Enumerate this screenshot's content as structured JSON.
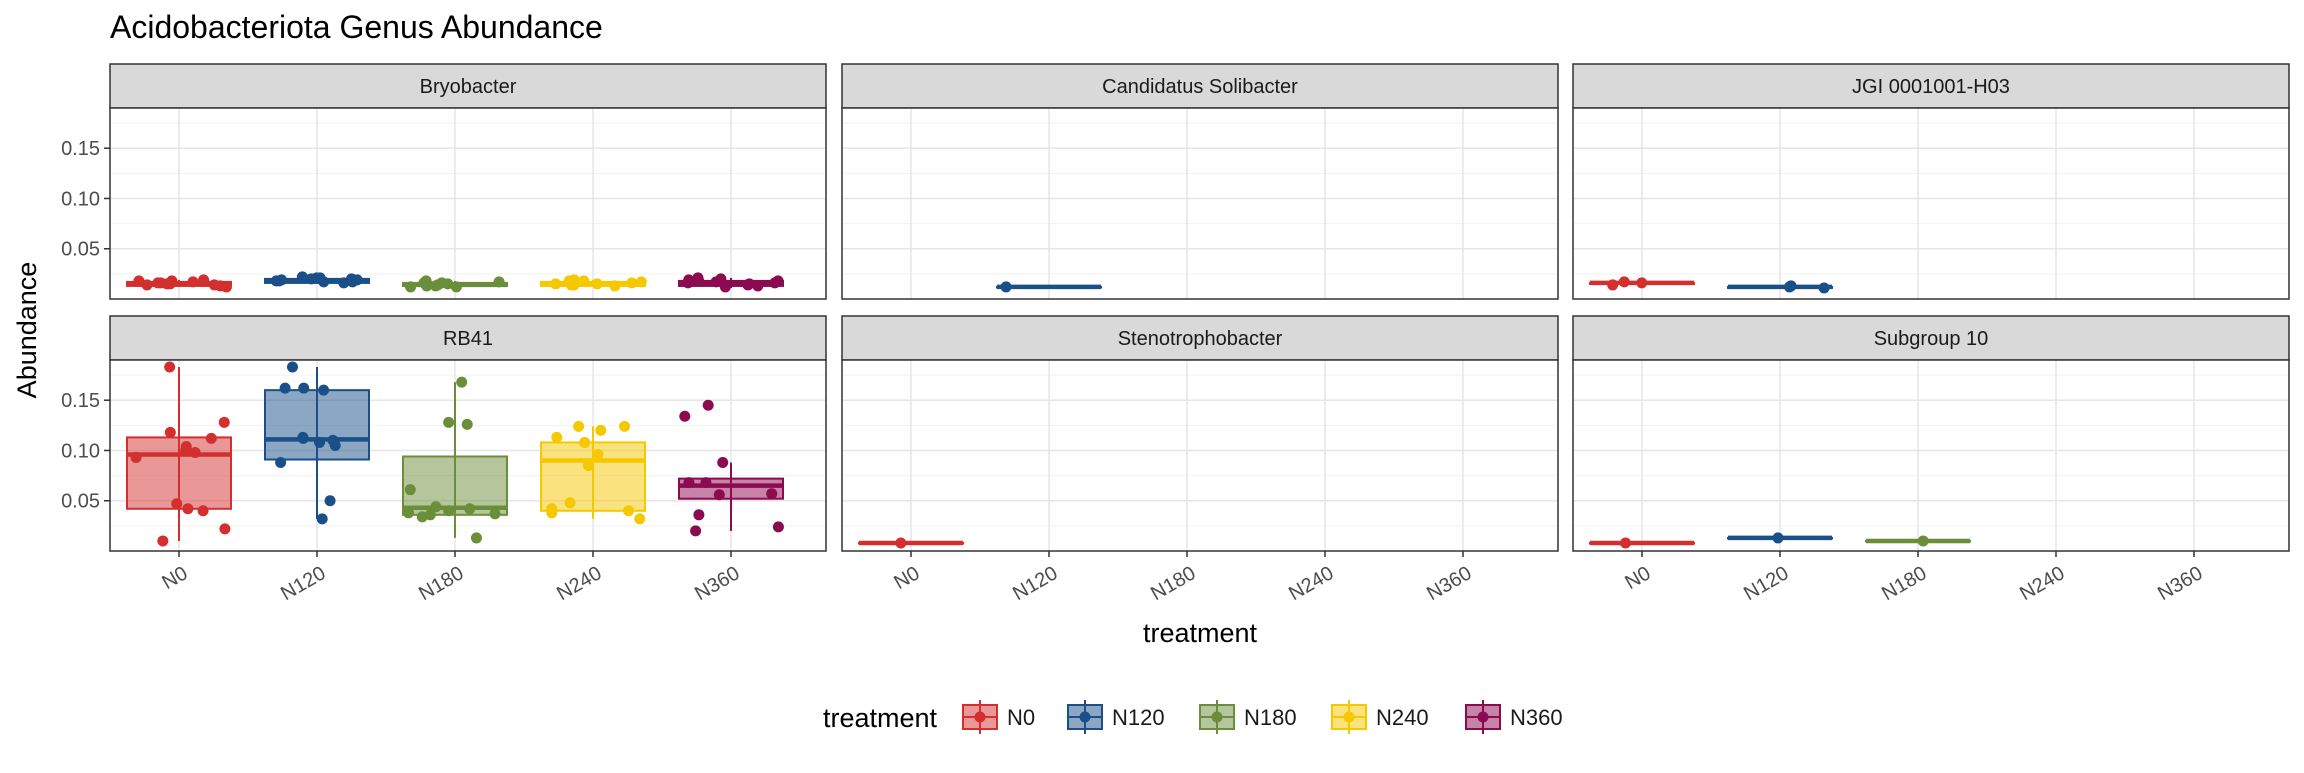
{
  "chart_data": {
    "type": "box",
    "title": "Acidobacteriota Genus Abundance",
    "xlabel": "treatment",
    "ylabel": "Abundance",
    "categories": [
      "N0",
      "N120",
      "N180",
      "N240",
      "N360"
    ],
    "yticks": [
      0.05,
      0.1,
      0.15
    ],
    "ytick_labels": [
      "0.05",
      "0.10",
      "0.15"
    ],
    "ylim": [
      0.0,
      0.19
    ],
    "grid": true,
    "legend": {
      "title": "treatment",
      "position": "bottom",
      "items": [
        "N0",
        "N120",
        "N180",
        "N240",
        "N360"
      ]
    },
    "colors": {
      "N0": "#d32f2f",
      "N120": "#1a4f8a",
      "N180": "#6b8e3a",
      "N240": "#f5c800",
      "N360": "#8b0a50"
    },
    "facets": [
      {
        "name": "Bryobacter",
        "groups": [
          {
            "category": "N0",
            "q1": 0.013,
            "median": 0.015,
            "q3": 0.017,
            "whisker_low": 0.012,
            "whisker_high": 0.019,
            "points": [
              0.014,
              0.016,
              0.018,
              0.015,
              0.013,
              0.017,
              0.019,
              0.014,
              0.016,
              0.015,
              0.018,
              0.012
            ]
          },
          {
            "category": "N120",
            "q1": 0.016,
            "median": 0.018,
            "q3": 0.02,
            "whisker_low": 0.015,
            "whisker_high": 0.022,
            "points": [
              0.019,
              0.021,
              0.017,
              0.02,
              0.018,
              0.022,
              0.016,
              0.019,
              0.017,
              0.021,
              0.018,
              0.02
            ]
          },
          {
            "category": "N180",
            "q1": 0.013,
            "median": 0.014,
            "q3": 0.016,
            "whisker_low": 0.011,
            "whisker_high": 0.018,
            "points": [
              0.013,
              0.016,
              0.018,
              0.014,
              0.012,
              0.015,
              0.017,
              0.013,
              0.016,
              0.014,
              0.012,
              0.015
            ]
          },
          {
            "category": "N240",
            "q1": 0.013,
            "median": 0.015,
            "q3": 0.017,
            "whisker_low": 0.012,
            "whisker_high": 0.019,
            "points": [
              0.015,
              0.017,
              0.019,
              0.014,
              0.016,
              0.018,
              0.013,
              0.015,
              0.017,
              0.016,
              0.014,
              0.018
            ]
          },
          {
            "category": "N360",
            "q1": 0.013,
            "median": 0.016,
            "q3": 0.018,
            "whisker_low": 0.011,
            "whisker_high": 0.021,
            "points": [
              0.016,
              0.019,
              0.013,
              0.018,
              0.015,
              0.021,
              0.014,
              0.017,
              0.02,
              0.016,
              0.012,
              0.018
            ]
          }
        ]
      },
      {
        "name": "Candidatus Solibacter",
        "groups": [
          {
            "category": "N120",
            "q1": 0.012,
            "median": 0.012,
            "q3": 0.012,
            "whisker_low": 0.012,
            "whisker_high": 0.012,
            "points": [
              0.012
            ]
          }
        ]
      },
      {
        "name": "JGI 0001001-H03",
        "groups": [
          {
            "category": "N0",
            "q1": 0.015,
            "median": 0.016,
            "q3": 0.016,
            "whisker_low": 0.014,
            "whisker_high": 0.017,
            "points": [
              0.014,
              0.017,
              0.016
            ]
          },
          {
            "category": "N120",
            "q1": 0.011,
            "median": 0.012,
            "q3": 0.012,
            "whisker_low": 0.011,
            "whisker_high": 0.013,
            "points": [
              0.011,
              0.013,
              0.012
            ]
          }
        ]
      },
      {
        "name": "RB41",
        "groups": [
          {
            "category": "N0",
            "q1": 0.042,
            "median": 0.096,
            "q3": 0.113,
            "whisker_low": 0.01,
            "whisker_high": 0.183,
            "points": [
              0.183,
              0.112,
              0.1,
              0.098,
              0.042,
              0.04,
              0.047,
              0.022,
              0.01,
              0.118,
              0.093,
              0.128,
              0.104
            ]
          },
          {
            "category": "N120",
            "q1": 0.091,
            "median": 0.111,
            "q3": 0.16,
            "whisker_low": 0.032,
            "whisker_high": 0.183,
            "points": [
              0.162,
              0.16,
              0.113,
              0.105,
              0.11,
              0.112,
              0.088,
              0.05,
              0.032,
              0.162,
              0.183,
              0.108
            ]
          },
          {
            "category": "N180",
            "q1": 0.036,
            "median": 0.043,
            "q3": 0.094,
            "whisker_low": 0.013,
            "whisker_high": 0.168,
            "points": [
              0.036,
              0.04,
              0.013,
              0.168,
              0.126,
              0.128,
              0.044,
              0.038,
              0.034,
              0.061,
              0.042,
              0.037
            ]
          },
          {
            "category": "N240",
            "q1": 0.04,
            "median": 0.09,
            "q3": 0.108,
            "whisker_low": 0.032,
            "whisker_high": 0.124,
            "points": [
              0.12,
              0.124,
              0.124,
              0.096,
              0.085,
              0.048,
              0.042,
              0.04,
              0.032,
              0.113,
              0.108,
              0.038
            ]
          },
          {
            "category": "N360",
            "q1": 0.052,
            "median": 0.065,
            "q3": 0.072,
            "whisker_low": 0.02,
            "whisker_high": 0.088,
            "points": [
              0.024,
              0.02,
              0.145,
              0.088,
              0.068,
              0.036,
              0.134,
              0.068,
              0.056,
              0.057
            ]
          }
        ]
      },
      {
        "name": "Stenotrophobacter",
        "groups": [
          {
            "category": "N0",
            "q1": 0.008,
            "median": 0.008,
            "q3": 0.008,
            "whisker_low": 0.008,
            "whisker_high": 0.008,
            "points": [
              0.008
            ]
          }
        ]
      },
      {
        "name": "Subgroup 10",
        "groups": [
          {
            "category": "N0",
            "q1": 0.008,
            "median": 0.008,
            "q3": 0.008,
            "whisker_low": 0.008,
            "whisker_high": 0.008,
            "points": [
              0.008
            ]
          },
          {
            "category": "N120",
            "q1": 0.013,
            "median": 0.013,
            "q3": 0.013,
            "whisker_low": 0.013,
            "whisker_high": 0.013,
            "points": [
              0.013
            ]
          },
          {
            "category": "N180",
            "q1": 0.01,
            "median": 0.01,
            "q3": 0.01,
            "whisker_low": 0.01,
            "whisker_high": 0.01,
            "points": [
              0.01
            ]
          }
        ]
      }
    ]
  }
}
